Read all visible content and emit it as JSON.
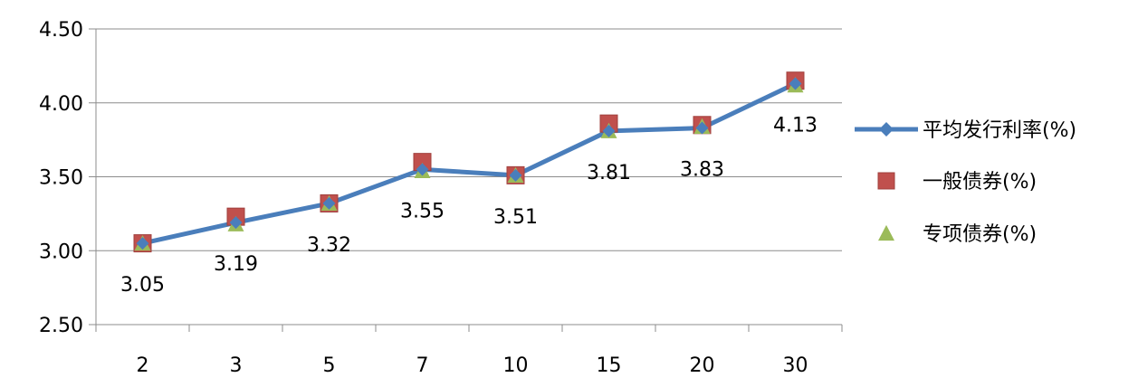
{
  "chart_data": {
    "type": "line",
    "categories": [
      "2",
      "3",
      "5",
      "7",
      "10",
      "15",
      "20",
      "30"
    ],
    "series": [
      {
        "name": "平均发行利率(%)",
        "type": "line",
        "marker": "diamond",
        "color": "#4a7ebb",
        "values": [
          3.05,
          3.19,
          3.32,
          3.55,
          3.51,
          3.81,
          3.83,
          4.13
        ]
      },
      {
        "name": "一般债券(%)",
        "type": "scatter",
        "marker": "square",
        "color": "#c0504d",
        "values": [
          3.05,
          3.23,
          3.32,
          3.6,
          3.51,
          3.86,
          3.85,
          4.15
        ]
      },
      {
        "name": "专项债券(%)",
        "type": "scatter",
        "marker": "triangle",
        "color": "#9bbb59",
        "values": [
          3.05,
          3.18,
          3.32,
          3.54,
          3.51,
          3.81,
          3.84,
          4.12
        ]
      }
    ],
    "data_labels": [
      "3.05",
      "3.19",
      "3.32",
      "3.55",
      "3.51",
      "3.81",
      "3.83",
      "4.13"
    ],
    "y_ticks": [
      "2.50",
      "3.00",
      "3.50",
      "4.00",
      "4.50"
    ],
    "ylim": [
      2.5,
      4.5
    ],
    "title": "",
    "xlabel": "",
    "ylabel": "",
    "grid": true,
    "legend_position": "right"
  }
}
